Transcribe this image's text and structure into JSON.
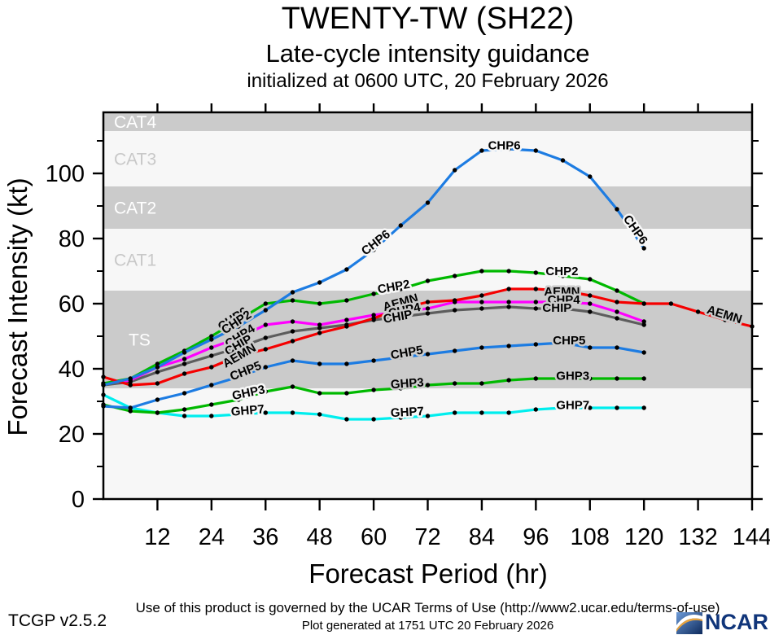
{
  "header": {
    "title": "TWENTY-TW (SH22)",
    "subtitle": "Late-cycle intensity guidance",
    "initialized": "initialized at 0600 UTC, 20 February 2026"
  },
  "axes": {
    "x_label": "Forecast Period (hr)",
    "y_label": "Forecast Intensity (kt)",
    "x_ticks": [
      12,
      24,
      36,
      48,
      60,
      72,
      84,
      96,
      108,
      120,
      132,
      144
    ],
    "y_major_ticks": [
      0,
      20,
      40,
      60,
      80,
      100
    ],
    "y_minor_ticks": [
      10,
      30,
      50,
      70,
      90,
      110
    ],
    "x_range": [
      0,
      144
    ],
    "y_range": [
      0,
      118.75
    ]
  },
  "bands": [
    {
      "label": "CAT4",
      "from": 113,
      "to": 118.75,
      "shade": "gray",
      "label_color": "#ffffff"
    },
    {
      "label": "CAT3",
      "from": 96,
      "to": 113,
      "shade": "light",
      "label_color": "#c8c8c8"
    },
    {
      "label": "CAT2",
      "from": 83,
      "to": 96,
      "shade": "gray",
      "label_color": "#ffffff"
    },
    {
      "label": "CAT1",
      "from": 64,
      "to": 83,
      "shade": "light",
      "label_color": "#c8c8c8"
    },
    {
      "label": "TS",
      "from": 34,
      "to": 64,
      "shade": "gray",
      "label_color": "#ffffff"
    },
    {
      "label": "",
      "from": 0,
      "to": 34,
      "shade": "light",
      "label_color": "#c8c8c8"
    }
  ],
  "colors": {
    "band_gray": "#cbcbcb",
    "band_light": "#f7f7f7",
    "blue": "#1d7ce2",
    "green": "#00b900",
    "red": "#f50000",
    "magenta": "#ff00ff",
    "gray": "#5d5d5d",
    "cyan": "#00eeee"
  },
  "chart_data": {
    "type": "line",
    "title": "TWENTY-TW (SH22) late-cycle intensity guidance",
    "xlabel": "Forecast Period (hr)",
    "ylabel": "Forecast Intensity (kt)",
    "xlim": [
      0,
      144
    ],
    "ylim": [
      0,
      118.75
    ],
    "grid": false,
    "marker_interval_hr": 6,
    "series": [
      {
        "name": "GHP7",
        "color_key": "cyan",
        "x": [
          0,
          6,
          12,
          18,
          24,
          30,
          36,
          42,
          48,
          54,
          60,
          66,
          72,
          78,
          84,
          90,
          96,
          102,
          108,
          114,
          120
        ],
        "y": [
          32,
          28,
          26.5,
          25.5,
          25.5,
          26,
          26.5,
          26.5,
          26,
          24.5,
          24.5,
          25,
          25.5,
          26.5,
          26.5,
          26.5,
          27.5,
          28,
          28,
          28,
          28
        ]
      },
      {
        "name": "GHP3",
        "color_key": "green",
        "x": [
          0,
          6,
          12,
          18,
          24,
          30,
          36,
          42,
          48,
          54,
          60,
          66,
          72,
          78,
          84,
          90,
          96,
          102,
          108,
          114,
          120
        ],
        "y": [
          29,
          27,
          26.5,
          27.5,
          29,
          30.5,
          33,
          34.5,
          32.5,
          32.5,
          33.5,
          34,
          35,
          35.5,
          35.5,
          36.5,
          37,
          37,
          37,
          37,
          37
        ]
      },
      {
        "name": "CHP5",
        "color_key": "blue",
        "x": [
          0,
          6,
          12,
          18,
          24,
          30,
          36,
          42,
          48,
          54,
          60,
          66,
          72,
          78,
          84,
          90,
          96,
          102,
          108,
          114,
          120
        ],
        "y": [
          28.5,
          28,
          30.5,
          32.5,
          35,
          37.5,
          40.5,
          42.5,
          41.5,
          41.5,
          42.5,
          43.5,
          44.5,
          45.5,
          46.5,
          47,
          47.5,
          48,
          46.5,
          46.5,
          45
        ]
      },
      {
        "name": "CHIP",
        "color_key": "gray",
        "x": [
          0,
          6,
          12,
          18,
          24,
          30,
          36,
          42,
          48,
          54,
          60,
          66,
          72,
          78,
          84,
          90,
          96,
          102,
          108,
          114,
          120
        ],
        "y": [
          35,
          36,
          39,
          41.5,
          44,
          46.5,
          49.5,
          51.5,
          52.5,
          53.5,
          55,
          56,
          57,
          58,
          58.5,
          59,
          58.5,
          58.5,
          57.5,
          55.5,
          53.5
        ]
      },
      {
        "name": "CHP4",
        "color_key": "magenta",
        "x": [
          0,
          6,
          12,
          18,
          24,
          30,
          36,
          42,
          48,
          54,
          60,
          66,
          72,
          78,
          84,
          90,
          96,
          102,
          108,
          114,
          120
        ],
        "y": [
          35.5,
          36.5,
          40.5,
          43,
          46.5,
          49.5,
          53.5,
          54.5,
          53.5,
          55,
          56.5,
          57.5,
          58.5,
          60.5,
          60.5,
          60.5,
          60.5,
          60.5,
          60,
          57.5,
          54.5
        ]
      },
      {
        "name": "CHP2",
        "color_key": "green",
        "x": [
          0,
          6,
          12,
          18,
          24,
          30,
          36,
          42,
          48,
          54,
          60,
          66,
          72,
          78,
          84,
          90,
          96,
          102,
          108,
          114,
          120
        ],
        "y": [
          35.5,
          37,
          41.5,
          45.5,
          50,
          55,
          60,
          61,
          60,
          61,
          63,
          64.5,
          67,
          68.5,
          70,
          70,
          69.5,
          68.5,
          67.5,
          64,
          60
        ]
      },
      {
        "name": "AEMN",
        "color_key": "red",
        "x": [
          0,
          6,
          12,
          18,
          24,
          30,
          36,
          42,
          48,
          54,
          60,
          66,
          72,
          78,
          84,
          90,
          96,
          102,
          108,
          114,
          120,
          126,
          132,
          138,
          144
        ],
        "y": [
          37.5,
          35,
          35.5,
          38.5,
          40.5,
          44,
          46,
          48.5,
          51,
          53,
          55.5,
          58.5,
          60.5,
          61,
          62.5,
          64.5,
          64.5,
          64,
          62.5,
          60.5,
          60,
          60,
          57.5,
          55,
          53
        ]
      },
      {
        "name": "CHP6",
        "color_key": "blue",
        "x": [
          0,
          6,
          12,
          18,
          24,
          30,
          36,
          42,
          48,
          54,
          60,
          66,
          72,
          78,
          84,
          90,
          96,
          102,
          108,
          114,
          120
        ],
        "y": [
          35,
          37,
          40.5,
          45,
          49,
          53,
          58,
          63.5,
          66.5,
          70.5,
          76.5,
          84,
          91,
          101,
          107,
          107.5,
          107,
          104,
          99,
          89,
          77
        ]
      }
    ],
    "annotations": [
      {
        "text": "CHP6",
        "x": 29.2,
        "y": 54.3,
        "rot": -33
      },
      {
        "text": "CHP2",
        "x": 30.0,
        "y": 53.3,
        "rot": -33
      },
      {
        "text": "CHP4",
        "x": 30.8,
        "y": 49.0,
        "rot": -33
      },
      {
        "text": "CHIP",
        "x": 30.4,
        "y": 46.2,
        "rot": -30
      },
      {
        "text": "AEMN",
        "x": 30.6,
        "y": 43.0,
        "rot": -30
      },
      {
        "text": "CHP5",
        "x": 31.9,
        "y": 38.2,
        "rot": -22
      },
      {
        "text": "GHP3",
        "x": 32.4,
        "y": 31.5,
        "rot": -12
      },
      {
        "text": "GHP7",
        "x": 32.1,
        "y": 26.0,
        "rot": -5
      },
      {
        "text": "CHP6",
        "x": 61.0,
        "y": 77.8,
        "rot": -38
      },
      {
        "text": "CHP2",
        "x": 64.6,
        "y": 64.0,
        "rot": -10
      },
      {
        "text": "AEMN",
        "x": 66.2,
        "y": 59.2,
        "rot": -16
      },
      {
        "text": "CHP4",
        "x": 67.0,
        "y": 56.8,
        "rot": -12
      },
      {
        "text": "CHIP",
        "x": 65.5,
        "y": 54.8,
        "rot": -10
      },
      {
        "text": "CHP5",
        "x": 67.5,
        "y": 43.8,
        "rot": -10
      },
      {
        "text": "GHP3",
        "x": 67.5,
        "y": 34.3,
        "rot": -4
      },
      {
        "text": "GHP7",
        "x": 67.5,
        "y": 25.5,
        "rot": -3
      },
      {
        "text": "CHP6",
        "x": 89.0,
        "y": 107.4,
        "rot": 0
      },
      {
        "text": "CHP6",
        "x": 117.4,
        "y": 82.0,
        "rot": 55
      },
      {
        "text": "CHP2",
        "x": 101.8,
        "y": 68.8,
        "rot": 0
      },
      {
        "text": "AEMN",
        "x": 101.8,
        "y": 62.5,
        "rot": 0
      },
      {
        "text": "CHP4",
        "x": 102.2,
        "y": 60.0,
        "rot": 0
      },
      {
        "text": "CHIP",
        "x": 100.7,
        "y": 57.5,
        "rot": 0
      },
      {
        "text": "CHP5",
        "x": 103.4,
        "y": 47.5,
        "rot": 0
      },
      {
        "text": "GHP3",
        "x": 104.2,
        "y": 36.6,
        "rot": 0
      },
      {
        "text": "GHP7",
        "x": 104.2,
        "y": 27.6,
        "rot": 0
      },
      {
        "text": "AEMN",
        "x": 137.6,
        "y": 55.5,
        "rot": 17
      }
    ]
  },
  "footer": {
    "terms": "Use of this product is governed by the UCAR Terms of Use (http://www2.ucar.edu/terms-of-use)",
    "version": "TCGP v2.5.2",
    "generated": "Plot generated at 1751 UTC   20 February 2026",
    "logo_text": "NCAR"
  }
}
